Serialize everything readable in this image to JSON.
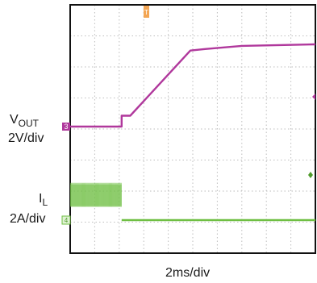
{
  "chart_data": {
    "type": "line",
    "timebase": "2ms/div",
    "grid": true,
    "x_divisions": 10,
    "y_divisions": 8,
    "series": [
      {
        "name": "VOUT",
        "channel_marker": "3",
        "color": "#b0389c",
        "scale": "2V/div",
        "points": [
          [
            0,
            0
          ],
          [
            2.1,
            0
          ],
          [
            2.1,
            0.35
          ],
          [
            2.45,
            0.35
          ],
          [
            4.9,
            2.45
          ],
          [
            5.5,
            2.5
          ],
          [
            7.0,
            2.6
          ],
          [
            10,
            2.65
          ]
        ]
      },
      {
        "name": "IL",
        "channel_marker": "4",
        "color": "#6fbf43",
        "scale": "2A/div",
        "noise_band": [
          [
            0,
            2.1
          ],
          [
            0.45,
            1.15
          ]
        ],
        "points": [
          [
            2.1,
            0
          ],
          [
            10,
            0
          ]
        ]
      }
    ]
  },
  "labels": {
    "vout_main": "V",
    "vout_sub": "OUT",
    "vout_scale": "2V/div",
    "il_main": "I",
    "il_sub": "L",
    "il_scale": "2A/div",
    "timebase": "2ms/div",
    "marker3": "3",
    "marker4": "4"
  }
}
